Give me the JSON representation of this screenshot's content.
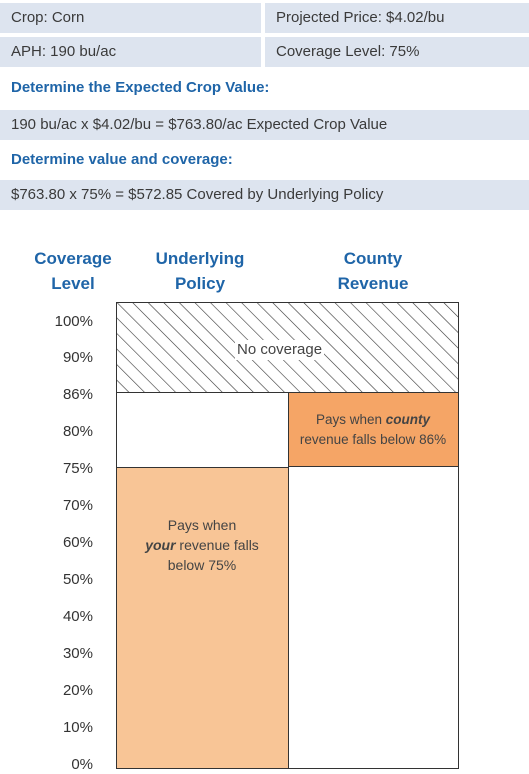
{
  "info_table": {
    "crop": "Crop: Corn",
    "projected_price": "Projected Price: $4.02/bu",
    "aph": "APH: 190 bu/ac",
    "coverage_level": "Coverage Level: 75%"
  },
  "expected_value": {
    "heading": "Determine the Expected Crop Value:",
    "calculation": "190 bu/ac x $4.02/bu = $763.80/ac  Expected Crop Value"
  },
  "value_coverage": {
    "heading": "Determine value and coverage:",
    "calculation": "$763.80 x 75% = $572.85  Covered by Underlying Policy"
  },
  "chart_data": {
    "type": "diagram",
    "columns": {
      "coverage_level": [
        "Coverage",
        "Level"
      ],
      "underlying_policy": [
        "Underlying",
        "Policy"
      ],
      "county_revenue": [
        "County",
        "Revenue"
      ]
    },
    "y_ticks": [
      "100%",
      "90%",
      "86%",
      "80%",
      "75%",
      "70%",
      "60%",
      "50%",
      "40%",
      "30%",
      "20%",
      "10%",
      "0%"
    ],
    "regions": {
      "no_coverage": {
        "label": "No coverage",
        "from": 86,
        "to": 100
      },
      "county_revenue": {
        "line1": "Pays when ",
        "line1_em": "county",
        "line2": "revenue falls below 86%",
        "from": 75,
        "to": 86
      },
      "underlying_policy": {
        "line1": "Pays when",
        "line2_em": "your",
        "line2": " revenue falls",
        "line3": "below 75%",
        "from": 0,
        "to": 75
      }
    },
    "colors": {
      "underlying_fill": "#f8c596",
      "county_fill": "#f5a566",
      "heading_blue": "#1f65a8",
      "table_fill": "#dde4ef"
    }
  }
}
